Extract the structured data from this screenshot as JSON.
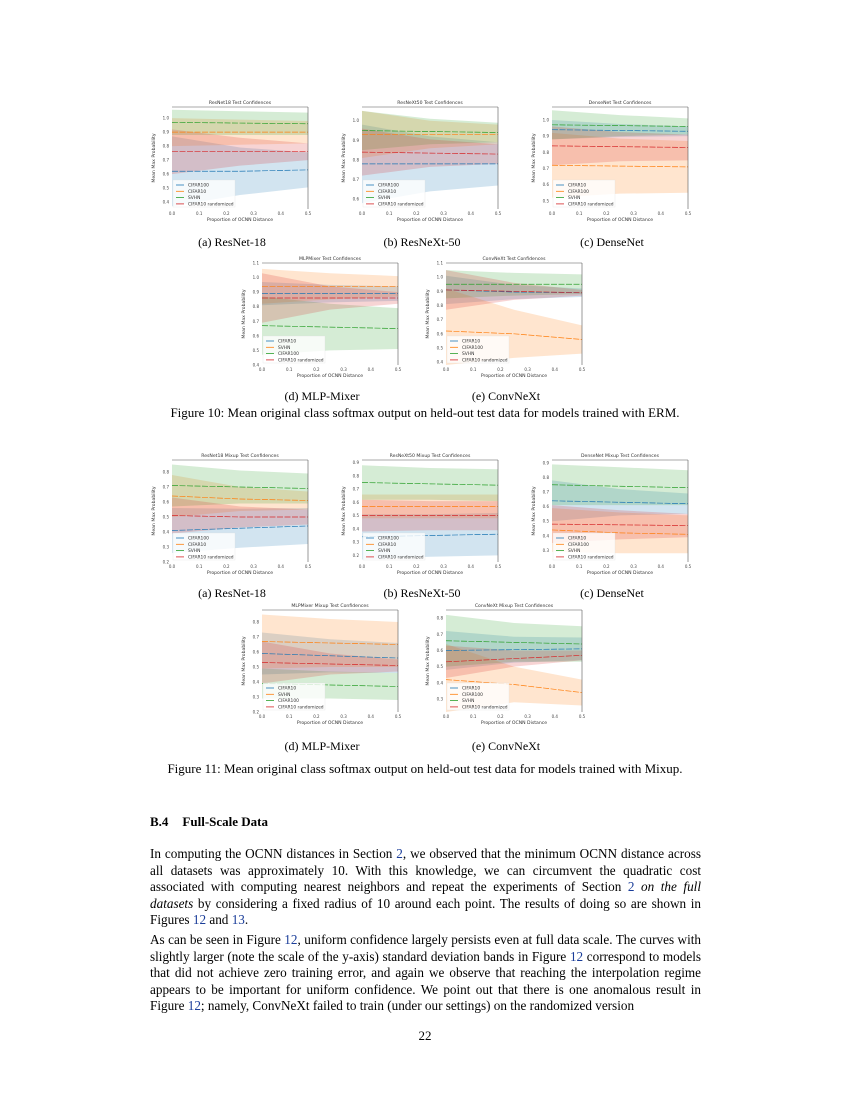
{
  "colors": {
    "blue": "#1f77b4",
    "orange": "#ff7f0e",
    "green": "#2ca02c",
    "red": "#d62728",
    "link": "#1a3d99"
  },
  "figure10": {
    "caption": "Figure 10: Mean original class softmax output on held-out test data for models trained with ERM.",
    "subcaptions": [
      "(a) ResNet-18",
      "(b) ResNeXt-50",
      "(c) DenseNet",
      "(d) MLP-Mixer",
      "(e) ConvNeXt"
    ]
  },
  "figure11": {
    "caption": "Figure 11: Mean original class softmax output on held-out test data for models trained with Mixup.",
    "subcaptions": [
      "(a) ResNet-18",
      "(b) ResNeXt-50",
      "(c) DenseNet",
      "(d) MLP-Mixer",
      "(e) ConvNeXt"
    ]
  },
  "chart_data": [
    {
      "type": "line",
      "title": "ResNet18 Test Confidences",
      "xlabel": "Proportion of OCNN Distance",
      "ylabel": "Mean Max Probability",
      "x": [
        0,
        0.25,
        0.5
      ],
      "xlim": [
        0,
        0.5
      ],
      "xticks": [
        0,
        0.1,
        0.2,
        0.3,
        0.4,
        0.5
      ],
      "ylim": [
        0.35,
        1.08
      ],
      "yticks": [
        0.4,
        0.5,
        0.6,
        0.7,
        0.8,
        0.9,
        1.0
      ],
      "legend": "lower-left",
      "grid": false,
      "series": [
        {
          "name": "CIFAR100",
          "color": "blue",
          "mean": [
            0.62,
            0.62,
            0.63
          ],
          "std": [
            0.25,
            0.17,
            0.125
          ]
        },
        {
          "name": "CIFAR10",
          "color": "orange",
          "mean": [
            0.9,
            0.9,
            0.9
          ],
          "std": [
            0.1,
            0.09,
            0.08
          ]
        },
        {
          "name": "SVHN",
          "color": "green",
          "mean": [
            0.97,
            0.965,
            0.96
          ],
          "std": [
            0.09,
            0.085,
            0.08
          ]
        },
        {
          "name": "CIFAR10 randomized",
          "color": "red",
          "mean": [
            0.76,
            0.76,
            0.76
          ],
          "std": [
            0.16,
            0.1,
            0.06
          ]
        }
      ]
    },
    {
      "type": "line",
      "title": "ResNeXt50 Test Confidences",
      "xlabel": "Proportion of OCNN Distance",
      "ylabel": "Mean Max Probability",
      "x": [
        0,
        0.25,
        0.5
      ],
      "xlim": [
        0,
        0.5
      ],
      "xticks": [
        0,
        0.1,
        0.2,
        0.3,
        0.4,
        0.5
      ],
      "ylim": [
        0.55,
        1.07
      ],
      "yticks": [
        0.6,
        0.7,
        0.8,
        0.9,
        1.0
      ],
      "legend": "lower-left",
      "grid": false,
      "series": [
        {
          "name": "CIFAR100",
          "color": "blue",
          "mean": [
            0.78,
            0.78,
            0.78
          ],
          "std": [
            0.2,
            0.14,
            0.11
          ]
        },
        {
          "name": "CIFAR10",
          "color": "orange",
          "mean": [
            0.93,
            0.93,
            0.93
          ],
          "std": [
            0.12,
            0.07,
            0.05
          ]
        },
        {
          "name": "SVHN",
          "color": "green",
          "mean": [
            0.95,
            0.945,
            0.94
          ],
          "std": [
            0.1,
            0.065,
            0.05
          ]
        },
        {
          "name": "CIFAR10 randomized",
          "color": "red",
          "mean": [
            0.84,
            0.835,
            0.83
          ],
          "std": [
            0.12,
            0.07,
            0.05
          ]
        }
      ]
    },
    {
      "type": "line",
      "title": "DenseNet Test Confidences",
      "xlabel": "Proportion of OCNN Distance",
      "ylabel": "Mean Max Probability",
      "x": [
        0,
        0.25,
        0.5
      ],
      "xlim": [
        0,
        0.5
      ],
      "xticks": [
        0,
        0.1,
        0.2,
        0.3,
        0.4,
        0.5
      ],
      "ylim": [
        0.45,
        1.08
      ],
      "yticks": [
        0.5,
        0.6,
        0.7,
        0.8,
        0.9,
        1.0
      ],
      "legend": "lower-left",
      "grid": false,
      "series": [
        {
          "name": "CIFAR10",
          "color": "blue",
          "mean": [
            0.94,
            0.935,
            0.93
          ],
          "std": [
            0.06,
            0.04,
            0.03
          ]
        },
        {
          "name": "CIFAR100",
          "color": "orange",
          "mean": [
            0.72,
            0.715,
            0.71
          ],
          "std": [
            0.2,
            0.17,
            0.16
          ]
        },
        {
          "name": "SVHN",
          "color": "green",
          "mean": [
            0.97,
            0.965,
            0.96
          ],
          "std": [
            0.09,
            0.065,
            0.05
          ]
        },
        {
          "name": "CIFAR10 randomized",
          "color": "red",
          "mean": [
            0.84,
            0.835,
            0.83
          ],
          "std": [
            0.12,
            0.09,
            0.08
          ]
        }
      ]
    },
    {
      "type": "line",
      "title": "MLPMixer Test Confidences",
      "xlabel": "Proportion of OCNN Distance",
      "ylabel": "Mean Max Probability",
      "x": [
        0,
        0.25,
        0.5
      ],
      "xlim": [
        0,
        0.5
      ],
      "xticks": [
        0,
        0.1,
        0.2,
        0.3,
        0.4,
        0.5
      ],
      "ylim": [
        0.4,
        1.1
      ],
      "yticks": [
        0.4,
        0.5,
        0.6,
        0.7,
        0.8,
        0.9,
        1.0,
        1.1
      ],
      "legend": "lower-left",
      "grid": false,
      "series": [
        {
          "name": "CIFAR10",
          "color": "blue",
          "mean": [
            0.89,
            0.89,
            0.89
          ],
          "std": [
            0.08,
            0.06,
            0.05
          ]
        },
        {
          "name": "SVHN",
          "color": "orange",
          "mean": [
            0.94,
            0.94,
            0.94
          ],
          "std": [
            0.12,
            0.09,
            0.07
          ]
        },
        {
          "name": "CIFAR100",
          "color": "green",
          "mean": [
            0.67,
            0.66,
            0.65
          ],
          "std": [
            0.2,
            0.16,
            0.14
          ]
        },
        {
          "name": "CIFAR10 randomized",
          "color": "red",
          "mean": [
            0.86,
            0.86,
            0.86
          ],
          "std": [
            0.17,
            0.08,
            0.04
          ]
        }
      ]
    },
    {
      "type": "line",
      "title": "ConvNeXt Test Confidences",
      "xlabel": "Proportion of OCNN Distance",
      "ylabel": "Mean Max Probability",
      "x": [
        0,
        0.25,
        0.5
      ],
      "xlim": [
        0,
        0.5
      ],
      "xticks": [
        0,
        0.1,
        0.2,
        0.3,
        0.4,
        0.5
      ],
      "ylim": [
        0.38,
        1.1
      ],
      "yticks": [
        0.4,
        0.5,
        0.6,
        0.7,
        0.8,
        0.9,
        1.0,
        1.1
      ],
      "legend": "lower-left",
      "grid": false,
      "series": [
        {
          "name": "CIFAR10",
          "color": "blue",
          "mean": [
            0.91,
            0.895,
            0.89
          ],
          "std": [
            0.1,
            0.05,
            0.03
          ]
        },
        {
          "name": "CIFAR100",
          "color": "orange",
          "mean": [
            0.62,
            0.6,
            0.56
          ],
          "std": [
            0.3,
            0.17,
            0.1
          ]
        },
        {
          "name": "SVHN",
          "color": "green",
          "mean": [
            0.95,
            0.95,
            0.95
          ],
          "std": [
            0.1,
            0.08,
            0.07
          ]
        },
        {
          "name": "CIFAR10 randomized",
          "color": "red",
          "mean": [
            0.91,
            0.9,
            0.89
          ],
          "std": [
            0.14,
            0.06,
            0.02
          ]
        }
      ]
    },
    {
      "type": "line",
      "title": "ResNet18 Mixup Test Confidences",
      "xlabel": "Proportion of OCNN Distance",
      "ylabel": "Mean Max Probability",
      "x": [
        0,
        0.25,
        0.5
      ],
      "xlim": [
        0,
        0.5
      ],
      "xticks": [
        0,
        0.1,
        0.2,
        0.3,
        0.4,
        0.5
      ],
      "ylim": [
        0.2,
        0.88
      ],
      "yticks": [
        0.2,
        0.3,
        0.4,
        0.5,
        0.6,
        0.7,
        0.8
      ],
      "legend": "lower-left",
      "grid": false,
      "series": [
        {
          "name": "CIFAR100",
          "color": "blue",
          "mean": [
            0.41,
            0.425,
            0.44
          ],
          "std": [
            0.15,
            0.13,
            0.12
          ]
        },
        {
          "name": "CIFAR10",
          "color": "orange",
          "mean": [
            0.64,
            0.62,
            0.61
          ],
          "std": [
            0.14,
            0.08,
            0.06
          ]
        },
        {
          "name": "SVHN",
          "color": "green",
          "mean": [
            0.71,
            0.7,
            0.69
          ],
          "std": [
            0.14,
            0.11,
            0.1
          ]
        },
        {
          "name": "CIFAR10 randomized",
          "color": "red",
          "mean": [
            0.51,
            0.5,
            0.5
          ],
          "std": [
            0.12,
            0.07,
            0.05
          ]
        }
      ]
    },
    {
      "type": "line",
      "title": "ResNeXt50 Mixup Test Confidences",
      "xlabel": "Proportion of OCNN Distance",
      "ylabel": "Mean Max Probability",
      "x": [
        0,
        0.25,
        0.5
      ],
      "xlim": [
        0,
        0.5
      ],
      "xticks": [
        0,
        0.1,
        0.2,
        0.3,
        0.4,
        0.5
      ],
      "ylim": [
        0.15,
        0.92
      ],
      "yticks": [
        0.2,
        0.3,
        0.4,
        0.5,
        0.6,
        0.7,
        0.8,
        0.9
      ],
      "legend": "lower-left",
      "grid": false,
      "series": [
        {
          "name": "CIFAR100",
          "color": "blue",
          "mean": [
            0.34,
            0.35,
            0.36
          ],
          "std": [
            0.17,
            0.16,
            0.16
          ]
        },
        {
          "name": "CIFAR10",
          "color": "orange",
          "mean": [
            0.57,
            0.57,
            0.57
          ],
          "std": [
            0.09,
            0.09,
            0.09
          ]
        },
        {
          "name": "SVHN",
          "color": "green",
          "mean": [
            0.75,
            0.74,
            0.73
          ],
          "std": [
            0.13,
            0.12,
            0.12
          ]
        },
        {
          "name": "CIFAR10 randomized",
          "color": "red",
          "mean": [
            0.5,
            0.5,
            0.5
          ],
          "std": [
            0.12,
            0.11,
            0.11
          ]
        }
      ]
    },
    {
      "type": "line",
      "title": "DenseNet Mixup Test Confidences",
      "xlabel": "Proportion of OCNN Distance",
      "ylabel": "Mean Max Probability",
      "x": [
        0,
        0.25,
        0.5
      ],
      "xlim": [
        0,
        0.5
      ],
      "xticks": [
        0,
        0.1,
        0.2,
        0.3,
        0.4,
        0.5
      ],
      "ylim": [
        0.22,
        0.92
      ],
      "yticks": [
        0.3,
        0.4,
        0.5,
        0.6,
        0.7,
        0.8,
        0.9
      ],
      "legend": "lower-left",
      "grid": false,
      "series": [
        {
          "name": "CIFAR10",
          "color": "blue",
          "mean": [
            0.64,
            0.63,
            0.62
          ],
          "std": [
            0.14,
            0.09,
            0.07
          ]
        },
        {
          "name": "CIFAR100",
          "color": "orange",
          "mean": [
            0.44,
            0.42,
            0.41
          ],
          "std": [
            0.15,
            0.14,
            0.13
          ]
        },
        {
          "name": "SVHN",
          "color": "green",
          "mean": [
            0.75,
            0.74,
            0.73
          ],
          "std": [
            0.14,
            0.13,
            0.12
          ]
        },
        {
          "name": "CIFAR10 randomized",
          "color": "red",
          "mean": [
            0.48,
            0.475,
            0.47
          ],
          "std": [
            0.13,
            0.1,
            0.08
          ]
        }
      ]
    },
    {
      "type": "line",
      "title": "MLPMixer Mixup Test Confidences",
      "xlabel": "Proportion of OCNN Distance",
      "ylabel": "Mean Max Probability",
      "x": [
        0,
        0.25,
        0.5
      ],
      "xlim": [
        0,
        0.5
      ],
      "xticks": [
        0,
        0.1,
        0.2,
        0.3,
        0.4,
        0.5
      ],
      "ylim": [
        0.2,
        0.88
      ],
      "yticks": [
        0.2,
        0.3,
        0.4,
        0.5,
        0.6,
        0.7,
        0.8
      ],
      "legend": "lower-left",
      "grid": false,
      "series": [
        {
          "name": "CIFAR10",
          "color": "blue",
          "mean": [
            0.59,
            0.575,
            0.56
          ],
          "std": [
            0.14,
            0.11,
            0.1
          ]
        },
        {
          "name": "SVHN",
          "color": "orange",
          "mean": [
            0.67,
            0.66,
            0.65
          ],
          "std": [
            0.18,
            0.16,
            0.15
          ]
        },
        {
          "name": "CIFAR100",
          "color": "green",
          "mean": [
            0.39,
            0.38,
            0.37
          ],
          "std": [
            0.1,
            0.09,
            0.09
          ]
        },
        {
          "name": "CIFAR10 randomized",
          "color": "red",
          "mean": [
            0.53,
            0.52,
            0.51
          ],
          "std": [
            0.14,
            0.07,
            0.04
          ]
        }
      ]
    },
    {
      "type": "line",
      "title": "ConvNeXt Mixup Test Confidences",
      "xlabel": "Proportion of OCNN Distance",
      "ylabel": "Mean Max Probability",
      "x": [
        0,
        0.25,
        0.5
      ],
      "xlim": [
        0,
        0.5
      ],
      "xticks": [
        0,
        0.1,
        0.2,
        0.3,
        0.4,
        0.5
      ],
      "ylim": [
        0.22,
        0.85
      ],
      "yticks": [
        0.3,
        0.4,
        0.5,
        0.6,
        0.7,
        0.8
      ],
      "legend": "lower-left",
      "grid": false,
      "series": [
        {
          "name": "CIFAR10",
          "color": "blue",
          "mean": [
            0.6,
            0.605,
            0.61
          ],
          "std": [
            0.12,
            0.08,
            0.07
          ]
        },
        {
          "name": "CIFAR100",
          "color": "orange",
          "mean": [
            0.42,
            0.39,
            0.34
          ],
          "std": [
            0.22,
            0.11,
            0.08
          ]
        },
        {
          "name": "SVHN",
          "color": "green",
          "mean": [
            0.66,
            0.65,
            0.64
          ],
          "std": [
            0.16,
            0.12,
            0.11
          ]
        },
        {
          "name": "CIFAR10 randomized",
          "color": "red",
          "mean": [
            0.53,
            0.55,
            0.57
          ],
          "std": [
            0.1,
            0.05,
            0.03
          ]
        }
      ]
    }
  ],
  "section": {
    "number": "B.4",
    "title": "Full-Scale Data"
  },
  "paragraphs": [
    [
      {
        "t": "In computing the OCNN distances in Section "
      },
      {
        "t": "2",
        "link": true
      },
      {
        "t": ", we observed that the minimum OCNN distance across all datasets was approximately 10. With this knowledge, we can circumvent the quadratic cost associated with computing nearest neighbors and repeat the experiments of Section "
      },
      {
        "t": "2",
        "link": true
      },
      {
        "t": " "
      },
      {
        "t": "on the full datasets",
        "em": true
      },
      {
        "t": " by considering a fixed radius of 10 around each point. The results of doing so are shown in Figures "
      },
      {
        "t": "12",
        "link": true
      },
      {
        "t": " and "
      },
      {
        "t": "13",
        "link": true
      },
      {
        "t": "."
      }
    ],
    [
      {
        "t": "As can be seen in Figure "
      },
      {
        "t": "12",
        "link": true
      },
      {
        "t": ", uniform confidence largely persists even at full data scale. The curves with slightly larger (note the scale of the y-axis) standard deviation bands in Figure "
      },
      {
        "t": "12",
        "link": true
      },
      {
        "t": " correspond to models that did not achieve zero training error, and again we observe that reaching the interpolation regime appears to be important for uniform confidence. We point out that there is one anomalous result in Figure "
      },
      {
        "t": "12",
        "link": true
      },
      {
        "t": "; namely, ConvNeXt failed to train (under our settings) on the randomized version"
      }
    ]
  ],
  "page_number": "22"
}
